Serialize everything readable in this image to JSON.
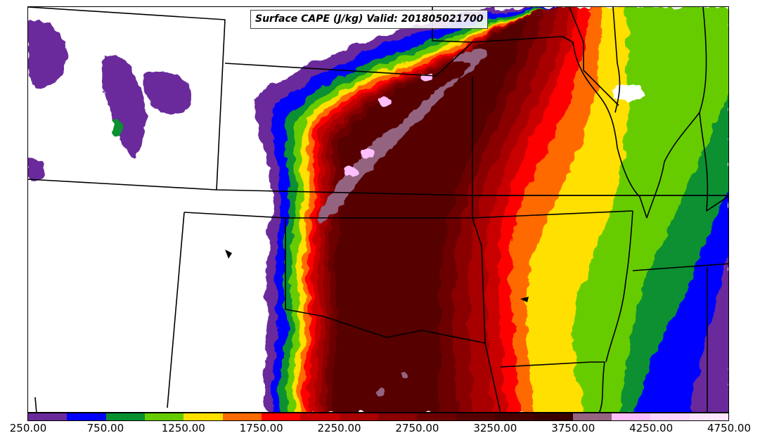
{
  "title": "Surface CAPE (J/kg) Valid: 201805021700",
  "colorbar": {
    "min": 250,
    "max": 4750,
    "step": 250,
    "colors": [
      "#6b2a9b",
      "#0000ff",
      "#079030",
      "#66cc00",
      "#ffe000",
      "#ff6a00",
      "#ff0000",
      "#c80000",
      "#a80000",
      "#8a0000",
      "#6c0000",
      "#560000",
      "#460000",
      "#380000",
      "#946480",
      "#ffbfff",
      "#ffd6ff",
      "#ffe8ff"
    ],
    "tick_labels": [
      "250.00",
      "750.00",
      "1250.00",
      "1750.00",
      "2250.00",
      "2750.00",
      "3250.00",
      "3750.00",
      "4250.00",
      "4750.00"
    ]
  },
  "field": {
    "regions": [
      {
        "name": "field-250",
        "level": 250,
        "color": "#6b2a9b"
      },
      {
        "name": "field-750",
        "level": 750,
        "color": "#0000ff"
      },
      {
        "name": "field-1000",
        "level": 1000,
        "color": "#079030"
      },
      {
        "name": "field-1250",
        "level": 1250,
        "color": "#66cc00"
      },
      {
        "name": "field-1500",
        "level": 1500,
        "color": "#ffe000"
      },
      {
        "name": "field-1750",
        "level": 1750,
        "color": "#ff6a00"
      },
      {
        "name": "field-2000",
        "level": 2000,
        "color": "#ff0000"
      },
      {
        "name": "field-2250",
        "level": 2250,
        "color": "#c80000"
      },
      {
        "name": "field-2500",
        "level": 2500,
        "color": "#a80000"
      },
      {
        "name": "field-2750",
        "level": 2750,
        "color": "#8a0000"
      },
      {
        "name": "field-3000",
        "level": 3000,
        "color": "#6c0000"
      },
      {
        "name": "field-3250",
        "level": 3250,
        "color": "#560000"
      },
      {
        "name": "field-3750",
        "level": 3750,
        "color": "#946480"
      },
      {
        "name": "field-4250",
        "level": 4250,
        "color": "#ffbfff"
      }
    ]
  }
}
